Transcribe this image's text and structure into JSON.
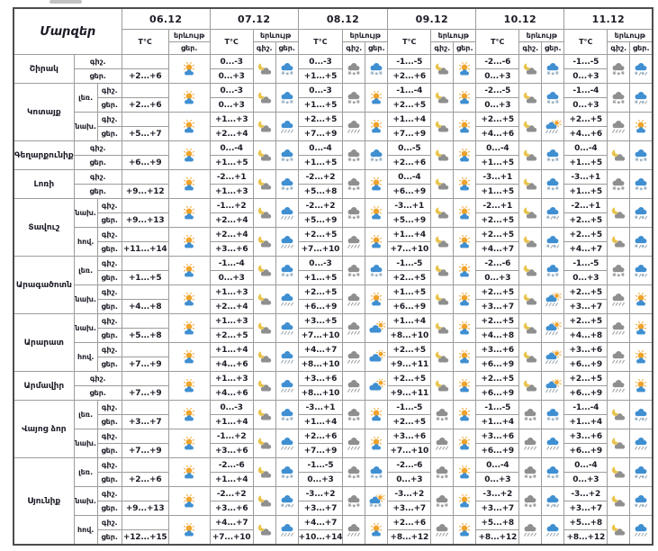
{
  "header": {
    "regions_label": "Մարզեր",
    "temp_label": "T°C",
    "phenomenon_label": "երևույթ",
    "night_label": "գիշ.",
    "day_label": "ցեր.",
    "dates": [
      "06.12",
      "07.12",
      "08.12",
      "09.12",
      "10.12",
      "11.12"
    ]
  },
  "colors": {
    "sun": "#f0a32a",
    "moon": "#e8c44c",
    "cloud_gray": "#8f8f8f",
    "cloud_blue": "#3f8fd1",
    "flake_gray": "#8f8f8f",
    "flake_blue": "#8ea7ba",
    "rain_blue": "#8b98a3",
    "text": "#1b1b26",
    "border": "#9c9c9c"
  },
  "regions": [
    {
      "name": "Շիրակ",
      "parts": [
        {
          "zone": null,
          "cells": [
            {
              "n": "",
              "d": "+2...+6",
              "ni": null,
              "di": "sun-cloud"
            },
            {
              "n": "0...-3",
              "d": "0...+3",
              "ni": "moon-cloud",
              "di": "cloud-snow-blue"
            },
            {
              "n": "0...-3",
              "d": "+1...+5",
              "ni": "cloud-snow-gray",
              "di": "cloud-snow-blue"
            },
            {
              "n": "-1...-5",
              "d": "+2...+6",
              "ni": "moon-cloud",
              "di": "sun-cloud"
            },
            {
              "n": "-2...-6",
              "d": "0...+3",
              "ni": "moon-cloud",
              "di": "cloud-snow-blue"
            },
            {
              "n": "-1...-5",
              "d": "0...+3",
              "ni": "cloud-snow-gray",
              "di": "cloud-sleet-blue"
            }
          ]
        }
      ]
    },
    {
      "name": "Կոտայք",
      "parts": [
        {
          "zone": "լեռ.",
          "cells": [
            {
              "n": "",
              "d": "+2...+6",
              "ni": null,
              "di": "sun-cloud"
            },
            {
              "n": "0...-3",
              "d": "0...+3",
              "ni": "moon-cloud",
              "di": "cloud-snow-blue"
            },
            {
              "n": "0...-3",
              "d": "+1...+5",
              "ni": "cloud-snow-gray",
              "di": "sun-cloud"
            },
            {
              "n": "-1...-4",
              "d": "+2...+5",
              "ni": "moon-cloud",
              "di": "sun-cloud"
            },
            {
              "n": "-2...-5",
              "d": "0...+3",
              "ni": "moon-cloud",
              "di": "cloud-snow-blue"
            },
            {
              "n": "-1...-4",
              "d": "0...+3",
              "ni": "cloud-snow-gray",
              "di": "cloud-sleet-blue"
            }
          ]
        },
        {
          "zone": "նախ.",
          "cells": [
            {
              "n": "",
              "d": "+5...+7",
              "ni": null,
              "di": "sun-cloud"
            },
            {
              "n": "+1...+3",
              "d": "+2...+4",
              "ni": "moon-cloud",
              "di": "cloud-rain-blue"
            },
            {
              "n": "+2...+5",
              "d": "+7...+9",
              "ni": "cloud-rain-gray",
              "di": "sun-cloud"
            },
            {
              "n": "+1...+4",
              "d": "+7...+9",
              "ni": "moon-cloud",
              "di": "sun-cloud"
            },
            {
              "n": "+2...+5",
              "d": "+4...+6",
              "ni": "moon-cloud",
              "di": "sun-cloud-rain"
            },
            {
              "n": "+2...+5",
              "d": "+4...+6",
              "ni": "cloud-rain-gray",
              "di": "sun-cloud"
            }
          ]
        }
      ]
    },
    {
      "name": "Գեղարքունիք",
      "parts": [
        {
          "zone": null,
          "cells": [
            {
              "n": "",
              "d": "+6...+9",
              "ni": null,
              "di": "sun-cloud"
            },
            {
              "n": "0...-4",
              "d": "+1...+5",
              "ni": "moon-cloud",
              "di": "cloud-snow-blue"
            },
            {
              "n": "0...-4",
              "d": "+1...+5",
              "ni": "cloud-snow-gray",
              "di": "cloud-snow-blue"
            },
            {
              "n": "0...-5",
              "d": "+2...+6",
              "ni": "moon-cloud",
              "di": "sun-cloud"
            },
            {
              "n": "0...-4",
              "d": "+1...+5",
              "ni": "moon-cloud",
              "di": "cloud-snow-blue"
            },
            {
              "n": "0...-4",
              "d": "+1...+5",
              "ni": "moon-cloud",
              "di": "cloud-snow-blue"
            }
          ]
        }
      ]
    },
    {
      "name": "Լոռի",
      "parts": [
        {
          "zone": null,
          "cells": [
            {
              "n": "",
              "d": "+9...+12",
              "ni": null,
              "di": "sun-cloud"
            },
            {
              "n": "-2...+1",
              "d": "+1...+3",
              "ni": "moon-cloud",
              "di": "cloud-snow-blue"
            },
            {
              "n": "-2...+2",
              "d": "+5...+8",
              "ni": "cloud-snow-gray",
              "di": "sun-cloud"
            },
            {
              "n": "0...-4",
              "d": "+6...+9",
              "ni": "moon-cloud",
              "di": "sun-cloud"
            },
            {
              "n": "-3...+1",
              "d": "+1...+5",
              "ni": "moon-cloud",
              "di": "cloud-snow-blue"
            },
            {
              "n": "-3...+1",
              "d": "+1...+5",
              "ni": "cloud-snow-gray",
              "di": "cloud-snow-blue"
            }
          ]
        }
      ]
    },
    {
      "name": "Տավուշ",
      "parts": [
        {
          "zone": "նախ.",
          "cells": [
            {
              "n": "",
              "d": "+9...+13",
              "ni": null,
              "di": "sun-cloud"
            },
            {
              "n": "-1...+2",
              "d": "+2...+4",
              "ni": "moon-cloud",
              "di": "cloud-rain-blue"
            },
            {
              "n": "-2...+2",
              "d": "+5...+9",
              "ni": "cloud-snow-gray",
              "di": "sun-cloud"
            },
            {
              "n": "-3...+1",
              "d": "+5...+9",
              "ni": "moon-cloud",
              "di": "sun-cloud"
            },
            {
              "n": "-2...+1",
              "d": "+2...+5",
              "ni": "moon-cloud",
              "di": "cloud-sleet-blue"
            },
            {
              "n": "-2...+1",
              "d": "+2...+5",
              "ni": "moon-cloud",
              "di": "cloud-sleet-blue"
            }
          ]
        },
        {
          "zone": "հով.",
          "cells": [
            {
              "n": "",
              "d": "+11...+14",
              "ni": null,
              "di": "sun-cloud"
            },
            {
              "n": "+2...+4",
              "d": "+3...+6",
              "ni": "moon-cloud",
              "di": "cloud-rain-blue"
            },
            {
              "n": "+2...+5",
              "d": "+7...+10",
              "ni": "cloud-rain-gray",
              "di": "sun-cloud"
            },
            {
              "n": "+1...+4",
              "d": "+7...+10",
              "ni": "moon-cloud",
              "di": "sun-cloud"
            },
            {
              "n": "+2...+5",
              "d": "+4...+7",
              "ni": "moon-cloud",
              "di": "cloud-sleet-blue"
            },
            {
              "n": "+2...+5",
              "d": "+4...+7",
              "ni": "moon-cloud",
              "di": "cloud-sleet-blue"
            }
          ]
        }
      ]
    },
    {
      "name": "Արագածոտն",
      "parts": [
        {
          "zone": "լեռ.",
          "cells": [
            {
              "n": "",
              "d": "+1...+5",
              "ni": null,
              "di": "sun-cloud"
            },
            {
              "n": "-1...-4",
              "d": "0...+3",
              "ni": "moon-cloud",
              "di": "cloud-snow-blue"
            },
            {
              "n": "0...-3",
              "d": "+1...+5",
              "ni": "cloud-snow-gray",
              "di": "cloud-snow-blue"
            },
            {
              "n": "-1...-5",
              "d": "+2...+5",
              "ni": "moon-cloud",
              "di": "sun-cloud"
            },
            {
              "n": "-2...-6",
              "d": "0...+3",
              "ni": "moon-cloud",
              "di": "cloud-snow-blue"
            },
            {
              "n": "-1...-5",
              "d": "0...+3",
              "ni": "cloud-snow-gray",
              "di": "cloud-sleet-blue"
            }
          ]
        },
        {
          "zone": "նախ.",
          "cells": [
            {
              "n": "",
              "d": "+4...+8",
              "ni": null,
              "di": "sun-cloud"
            },
            {
              "n": "+1...+3",
              "d": "+2...+4",
              "ni": "moon-cloud",
              "di": "cloud-rain-blue"
            },
            {
              "n": "+2...+5",
              "d": "+6...+9",
              "ni": "cloud-rain-gray",
              "di": "sun-cloud"
            },
            {
              "n": "+1...+5",
              "d": "+6...+9",
              "ni": "moon-cloud",
              "di": "sun-cloud"
            },
            {
              "n": "+2...+5",
              "d": "+3...+7",
              "ni": "moon-cloud",
              "di": "sun-cloud-rain"
            },
            {
              "n": "+2...+5",
              "d": "+3...+7",
              "ni": "cloud-rain-gray",
              "di": "sun-cloud"
            }
          ]
        }
      ]
    },
    {
      "name": "Արարատ",
      "parts": [
        {
          "zone": "նախ.",
          "cells": [
            {
              "n": "",
              "d": "+5...+8",
              "ni": null,
              "di": "sun-cloud"
            },
            {
              "n": "+1...+3",
              "d": "+2...+5",
              "ni": "moon-cloud",
              "di": "cloud-rain-blue"
            },
            {
              "n": "+3...+5",
              "d": "+7...+10",
              "ni": "cloud-rain-gray",
              "di": "cloud-sun"
            },
            {
              "n": "+1...+4",
              "d": "+8...+10",
              "ni": "moon-cloud",
              "di": "sun-cloud"
            },
            {
              "n": "+2...+5",
              "d": "+4...+8",
              "ni": "moon-cloud",
              "di": "sun-cloud-rain"
            },
            {
              "n": "+2...+5",
              "d": "+4...+8",
              "ni": "cloud-rain-gray",
              "di": "sun-cloud"
            }
          ]
        },
        {
          "zone": "հով.",
          "cells": [
            {
              "n": "",
              "d": "+7...+9",
              "ni": null,
              "di": "sun-cloud"
            },
            {
              "n": "+1...+4",
              "d": "+4...+6",
              "ni": "moon-cloud",
              "di": "cloud-rain-blue"
            },
            {
              "n": "+4...+7",
              "d": "+8...+10",
              "ni": "cloud-rain-gray",
              "di": "cloud-sun"
            },
            {
              "n": "+2...+5",
              "d": "+9...+11",
              "ni": "moon-cloud",
              "di": "sun-cloud"
            },
            {
              "n": "+3...+6",
              "d": "+6...+9",
              "ni": "moon-cloud",
              "di": "sun-cloud-rain"
            },
            {
              "n": "+3...+6",
              "d": "+6...+9",
              "ni": "cloud-rain-gray",
              "di": "sun-cloud"
            }
          ]
        }
      ]
    },
    {
      "name": "Արմավիր",
      "parts": [
        {
          "zone": null,
          "cells": [
            {
              "n": "",
              "d": "+7...+9",
              "ni": null,
              "di": "sun-cloud"
            },
            {
              "n": "+1...+3",
              "d": "+4...+6",
              "ni": "moon-cloud",
              "di": "cloud-rain-blue"
            },
            {
              "n": "+3...+6",
              "d": "+8...+10",
              "ni": "cloud-rain-gray",
              "di": "cloud-sun"
            },
            {
              "n": "+2...+5",
              "d": "+9...+11",
              "ni": "moon-cloud",
              "di": "sun-cloud"
            },
            {
              "n": "+2...+5",
              "d": "+6...+9",
              "ni": "moon-cloud",
              "di": "sun-cloud-rain"
            },
            {
              "n": "+2...+5",
              "d": "+6...+9",
              "ni": "cloud-rain-gray",
              "di": "sun-cloud"
            }
          ]
        }
      ]
    },
    {
      "name": "Վայոց ձոր",
      "parts": [
        {
          "zone": "լեռ.",
          "cells": [
            {
              "n": "",
              "d": "+3...+7",
              "ni": null,
              "di": "sun-cloud"
            },
            {
              "n": "0...-3",
              "d": "+1...+4",
              "ni": "moon-cloud",
              "di": "cloud-snow-blue"
            },
            {
              "n": "-3...+1",
              "d": "+1...+4",
              "ni": "cloud-snow-gray",
              "di": "sun-cloud"
            },
            {
              "n": "-1...-5",
              "d": "+2...+5",
              "ni": "cloud-snow-gray",
              "di": "sun-cloud"
            },
            {
              "n": "-1...-5",
              "d": "+1...+4",
              "ni": "cloud-snow-gray",
              "di": "cloud-snow-blue"
            },
            {
              "n": "-1...-4",
              "d": "+1...+4",
              "ni": "moon-cloud",
              "di": "cloud-sleet-blue"
            }
          ]
        },
        {
          "zone": "նախ.",
          "cells": [
            {
              "n": "",
              "d": "+7...+9",
              "ni": null,
              "di": "sun-cloud"
            },
            {
              "n": "-1...+2",
              "d": "+3...+6",
              "ni": "moon-cloud",
              "di": "cloud-rain-blue"
            },
            {
              "n": "+2...+6",
              "d": "+7...+9",
              "ni": "cloud-rain-gray",
              "di": "sun-cloud"
            },
            {
              "n": "+3...+6",
              "d": "+7...+10",
              "ni": "cloud-rain-gray",
              "di": "sun-cloud"
            },
            {
              "n": "+3...+6",
              "d": "+6...+9",
              "ni": "cloud-rain-gray",
              "di": "cloud-rain-blue"
            },
            {
              "n": "+3...+6",
              "d": "+6...+9",
              "ni": "moon-cloud",
              "di": "cloud-rain-blue"
            }
          ]
        }
      ]
    },
    {
      "name": "Սյունիք",
      "parts": [
        {
          "zone": "լեռ.",
          "cells": [
            {
              "n": "",
              "d": "+2...+6",
              "ni": null,
              "di": "sun-cloud"
            },
            {
              "n": "-2...-6",
              "d": "+1...+4",
              "ni": "moon-cloud",
              "di": "cloud-snow-blue"
            },
            {
              "n": "-1...-5",
              "d": "0...+3",
              "ni": "cloud-snow-gray",
              "di": "cloud-snow-blue"
            },
            {
              "n": "-2...-6",
              "d": "0...+3",
              "ni": "cloud-snow-gray",
              "di": "sun-cloud"
            },
            {
              "n": "0...-4",
              "d": "0...+3",
              "ni": "cloud-snow-gray",
              "di": "cloud-snow-blue"
            },
            {
              "n": "0...-4",
              "d": "0...+3",
              "ni": "moon-cloud",
              "di": "cloud-sleet-blue"
            }
          ]
        },
        {
          "zone": "նախ.",
          "cells": [
            {
              "n": "",
              "d": "+9...+13",
              "ni": null,
              "di": "sun-cloud"
            },
            {
              "n": "-2...+2",
              "d": "+3...+6",
              "ni": "moon-cloud",
              "di": "cloud-sleet-blue"
            },
            {
              "n": "-3...+2",
              "d": "+3...+7",
              "ni": "cloud-snow-gray",
              "di": "sun-cloud-snow"
            },
            {
              "n": "-3...+2",
              "d": "+3...+7",
              "ni": "cloud-snow-gray",
              "di": "sun-cloud"
            },
            {
              "n": "-3...+2",
              "d": "+3...+7",
              "ni": "cloud-snow-gray",
              "di": "cloud-sleet-blue"
            },
            {
              "n": "-3...+2",
              "d": "+3...+7",
              "ni": "moon-cloud",
              "di": "cloud-sleet-blue"
            }
          ]
        },
        {
          "zone": "հով.",
          "cells": [
            {
              "n": "",
              "d": "+12...+15",
              "ni": null,
              "di": "sun-cloud"
            },
            {
              "n": "+4...+7",
              "d": "+7...+10",
              "ni": "moon-cloud",
              "di": "cloud-rain-blue"
            },
            {
              "n": "+4...+7",
              "d": "+10...+14",
              "ni": "cloud-rain-gray",
              "di": "sun-cloud"
            },
            {
              "n": "+2...+6",
              "d": "+8...+12",
              "ni": "cloud-rain-gray",
              "di": "sun-cloud"
            },
            {
              "n": "+5...+8",
              "d": "+8...+12",
              "ni": "cloud-rain-gray",
              "di": "cloud-rain-blue"
            },
            {
              "n": "+5...+8",
              "d": "+8...+12",
              "ni": "moon-cloud",
              "di": "cloud-rain-blue"
            }
          ]
        }
      ]
    }
  ]
}
